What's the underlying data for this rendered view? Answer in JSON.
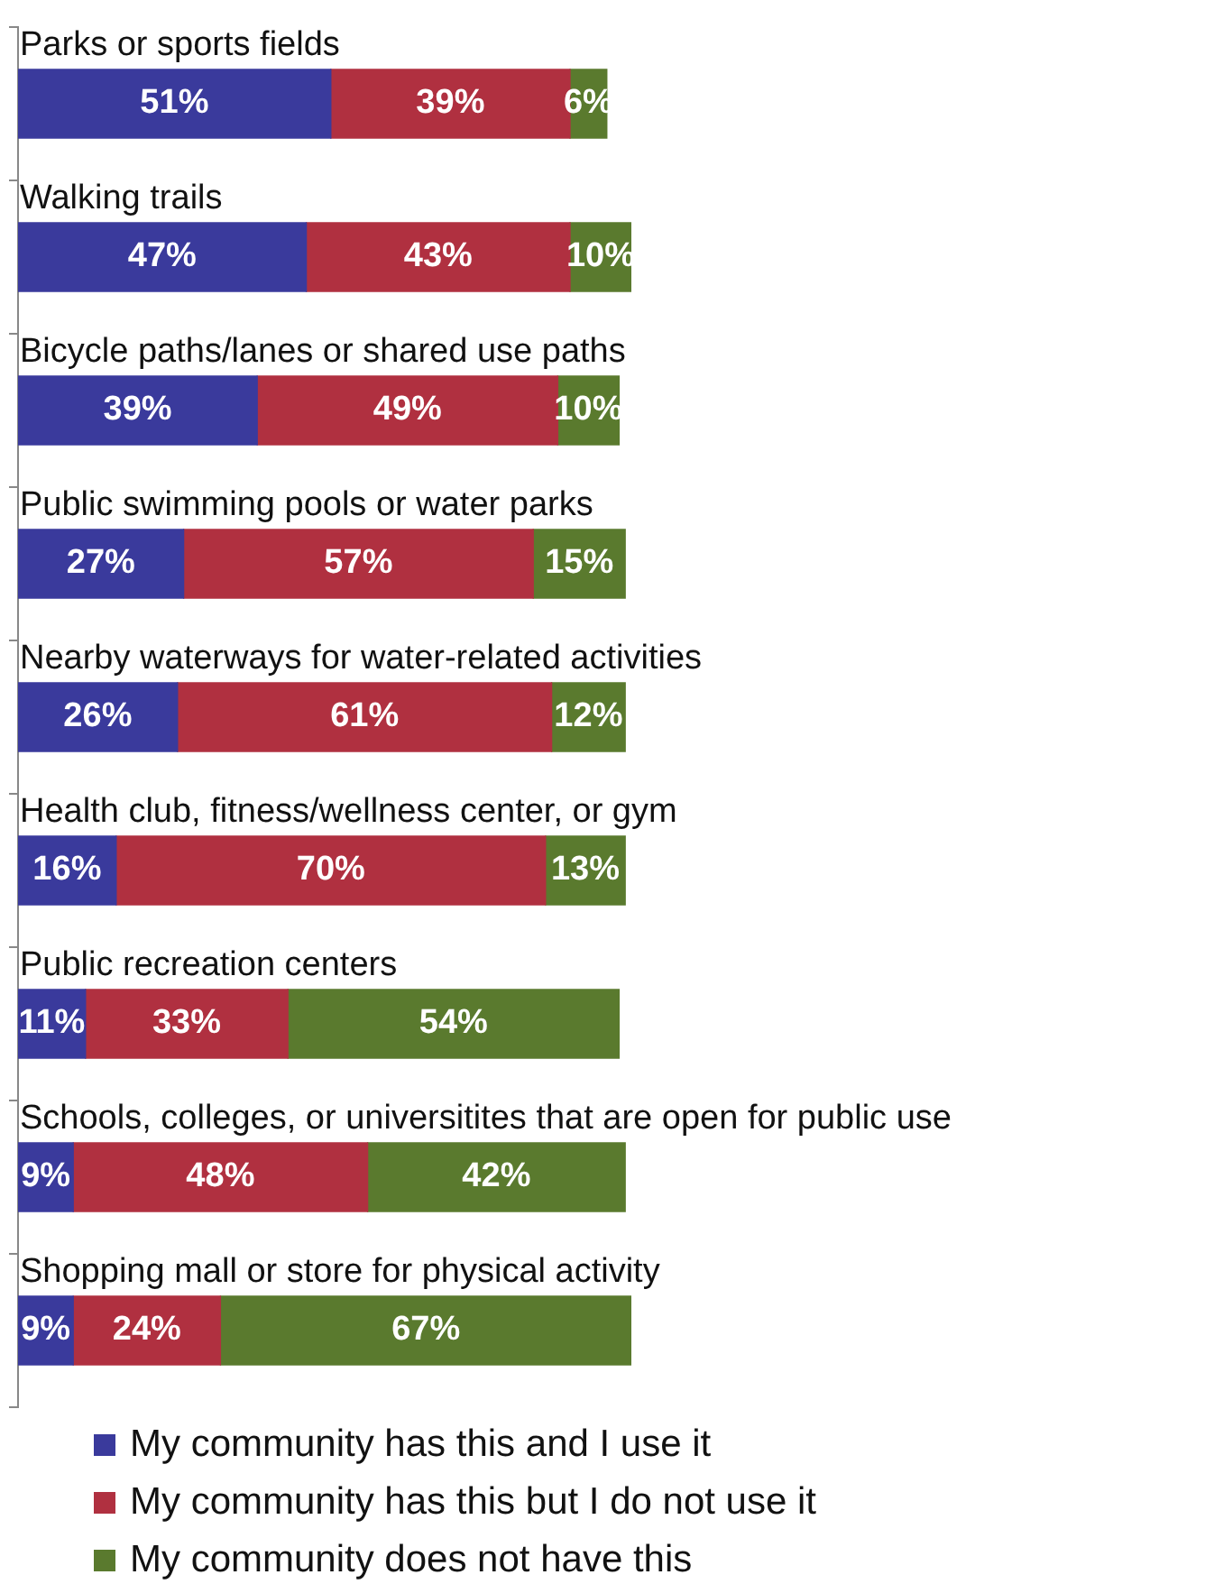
{
  "chart_data": {
    "type": "bar",
    "orientation": "horizontal",
    "stacked": true,
    "legend": "bottom",
    "grid": false,
    "categories": [
      "Parks or sports fields",
      "Walking trails",
      "Bicycle paths/lanes or shared use paths",
      "Public swimming pools or water parks",
      "Nearby waterways for water-related activities",
      "Health club, fitness/wellness center, or gym",
      "Public recreation centers",
      "Schools, colleges, or universitites that are open for public use",
      "Shopping mall or store for physical activity"
    ],
    "series": [
      {
        "name": "My community has this and I use it",
        "color": "#3a3a9c",
        "values": [
          51,
          47,
          39,
          27,
          26,
          16,
          11,
          9,
          9
        ],
        "value_labels": [
          "51%",
          "47%",
          "39%",
          "27%",
          "26%",
          "16%",
          "11%",
          "9%",
          "9%"
        ]
      },
      {
        "name": "My community has this but I do not use it",
        "color": "#b03040",
        "values": [
          39,
          43,
          49,
          57,
          61,
          70,
          33,
          48,
          24
        ],
        "value_labels": [
          "39%",
          "43%",
          "49%",
          "57%",
          "61%",
          "70%",
          "33%",
          "48%",
          "24%"
        ]
      },
      {
        "name": "My community does not have this",
        "color": "#5a7a2e",
        "values": [
          6,
          10,
          10,
          15,
          12,
          13,
          54,
          42,
          67
        ],
        "value_labels": [
          "6%",
          "10%",
          "10%",
          "15%",
          "12%",
          "13%",
          "54%",
          "42%",
          "67%"
        ]
      }
    ]
  }
}
